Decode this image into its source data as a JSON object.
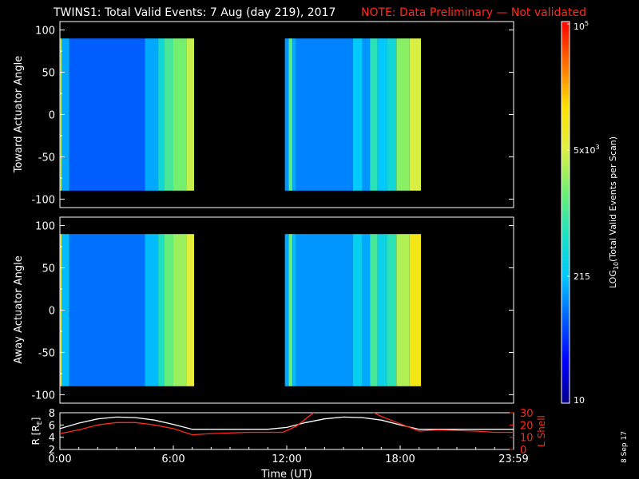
{
  "header": {
    "title": "TWINS1: Total Valid Events:  7 Aug (day 219), 2017",
    "note": "NOTE: Data Preliminary — Not validated",
    "note_color": "#ff2a1a"
  },
  "side_stamp": "8 Sep 17",
  "chart_data": [
    {
      "type": "heatmap",
      "panel": "top",
      "ylabel": "Toward Actuator Angle",
      "yticks": [
        100,
        50,
        0,
        -50,
        -100
      ],
      "ylim": [
        -110,
        110
      ],
      "y_data_range": [
        -90,
        90
      ],
      "x_coverage_hours": [
        [
          0.0,
          7.1
        ],
        [
          11.9,
          19.1
        ]
      ],
      "columns": [
        {
          "t0": 0.0,
          "t1": 0.1,
          "level": 0.62
        },
        {
          "t0": 0.1,
          "t1": 0.5,
          "level": 0.3
        },
        {
          "t0": 0.5,
          "t1": 4.5,
          "level": 0.22
        },
        {
          "t0": 4.5,
          "t1": 5.2,
          "level": 0.3
        },
        {
          "t0": 5.2,
          "t1": 5.5,
          "level": 0.4
        },
        {
          "t0": 5.5,
          "t1": 6.0,
          "level": 0.5
        },
        {
          "t0": 6.0,
          "t1": 6.7,
          "level": 0.56
        },
        {
          "t0": 6.7,
          "t1": 7.1,
          "level": 0.64
        },
        {
          "t0": 11.9,
          "t1": 12.1,
          "level": 0.28
        },
        {
          "t0": 12.1,
          "t1": 12.3,
          "level": 0.52
        },
        {
          "t0": 12.3,
          "t1": 12.5,
          "level": 0.3
        },
        {
          "t0": 12.5,
          "t1": 15.5,
          "level": 0.26
        },
        {
          "t0": 15.5,
          "t1": 16.0,
          "level": 0.34
        },
        {
          "t0": 16.0,
          "t1": 16.4,
          "level": 0.28
        },
        {
          "t0": 16.4,
          "t1": 16.8,
          "level": 0.46
        },
        {
          "t0": 16.8,
          "t1": 17.3,
          "level": 0.34
        },
        {
          "t0": 17.3,
          "t1": 17.8,
          "level": 0.4
        },
        {
          "t0": 17.8,
          "t1": 18.5,
          "level": 0.58
        },
        {
          "t0": 18.5,
          "t1": 19.1,
          "level": 0.66
        }
      ]
    },
    {
      "type": "heatmap",
      "panel": "middle",
      "ylabel": "Away Actuator Angle",
      "yticks": [
        100,
        50,
        0,
        -50,
        -100
      ],
      "ylim": [
        -110,
        110
      ],
      "y_data_range": [
        -90,
        90
      ],
      "x_coverage_hours": [
        [
          0.0,
          7.1
        ],
        [
          11.9,
          19.1
        ]
      ],
      "columns": [
        {
          "t0": 0.0,
          "t1": 0.1,
          "level": 0.66
        },
        {
          "t0": 0.1,
          "t1": 0.5,
          "level": 0.32
        },
        {
          "t0": 0.5,
          "t1": 4.5,
          "level": 0.24
        },
        {
          "t0": 4.5,
          "t1": 5.2,
          "level": 0.32
        },
        {
          "t0": 5.2,
          "t1": 5.5,
          "level": 0.44
        },
        {
          "t0": 5.5,
          "t1": 6.0,
          "level": 0.54
        },
        {
          "t0": 6.0,
          "t1": 6.7,
          "level": 0.6
        },
        {
          "t0": 6.7,
          "t1": 7.1,
          "level": 0.68
        },
        {
          "t0": 11.9,
          "t1": 12.1,
          "level": 0.3
        },
        {
          "t0": 12.1,
          "t1": 12.3,
          "level": 0.54
        },
        {
          "t0": 12.3,
          "t1": 12.5,
          "level": 0.32
        },
        {
          "t0": 12.5,
          "t1": 15.5,
          "level": 0.28
        },
        {
          "t0": 15.5,
          "t1": 16.0,
          "level": 0.36
        },
        {
          "t0": 16.0,
          "t1": 16.4,
          "level": 0.3
        },
        {
          "t0": 16.4,
          "t1": 16.8,
          "level": 0.5
        },
        {
          "t0": 16.8,
          "t1": 17.3,
          "level": 0.38
        },
        {
          "t0": 17.3,
          "t1": 17.8,
          "level": 0.46
        },
        {
          "t0": 17.8,
          "t1": 18.5,
          "level": 0.62
        },
        {
          "t0": 18.5,
          "t1": 19.1,
          "level": 0.74
        }
      ]
    },
    {
      "type": "line",
      "panel": "bottom",
      "ylabel": "R [R",
      "ylabel_sub": "E",
      "ylabel_end": "]",
      "yticks": [
        8,
        6,
        4,
        2
      ],
      "ylim": [
        2,
        8
      ],
      "ylabel_right": "L Shell",
      "yticks_right": [
        30,
        20,
        10,
        0
      ],
      "ylim_right": [
        0,
        30
      ],
      "xlabel": "Time (UT)",
      "xticks": [
        "0:00",
        "6:00",
        "12:00",
        "18:00",
        "23:59"
      ],
      "xtick_hours": [
        0,
        6,
        12,
        18,
        24
      ],
      "xlim": [
        0,
        24
      ],
      "series": [
        {
          "axis": "left",
          "color": "#ffffff",
          "x": [
            0,
            1,
            2,
            3,
            4,
            5,
            6,
            7,
            8,
            9,
            10,
            11,
            12,
            13,
            14,
            15,
            16,
            17,
            18,
            19,
            20,
            21,
            22,
            23,
            24
          ],
          "y": [
            5.4,
            6.3,
            7.0,
            7.3,
            7.2,
            6.8,
            6.1,
            5.3,
            5.3,
            5.3,
            5.3,
            5.3,
            5.6,
            6.4,
            7.0,
            7.3,
            7.2,
            6.8,
            6.0,
            5.3,
            5.3,
            5.3,
            5.3,
            5.3,
            5.3
          ]
        },
        {
          "axis": "right",
          "color": "#ff2a1a",
          "x": [
            0,
            1,
            2,
            3,
            4,
            5,
            6,
            7,
            8,
            10,
            11.8,
            12.5,
            13,
            13.5,
            16.5,
            17,
            17.5,
            18,
            18.5,
            19,
            20,
            22,
            23,
            24
          ],
          "y": [
            13,
            16,
            20,
            22,
            22,
            20,
            17,
            12,
            13,
            14,
            14,
            19,
            25,
            31,
            31,
            27,
            24,
            21,
            18,
            15,
            16,
            15,
            14,
            14
          ]
        }
      ]
    }
  ],
  "colorbar": {
    "label_prefix": "LOG",
    "label_sub": "10",
    "label_rest": "(Total Valid Events per Scan)",
    "tick_top": "10",
    "tick_top_sup": "5",
    "tick_mid_a": "5x10",
    "tick_mid_a_sup": "3",
    "tick_mid_b": "215",
    "tick_bottom": "10",
    "colors": [
      "#00008b",
      "#0000ff",
      "#0060ff",
      "#00c8ff",
      "#20e0c0",
      "#70f070",
      "#e0f040",
      "#ffe000",
      "#ff7000",
      "#ff0000"
    ]
  }
}
